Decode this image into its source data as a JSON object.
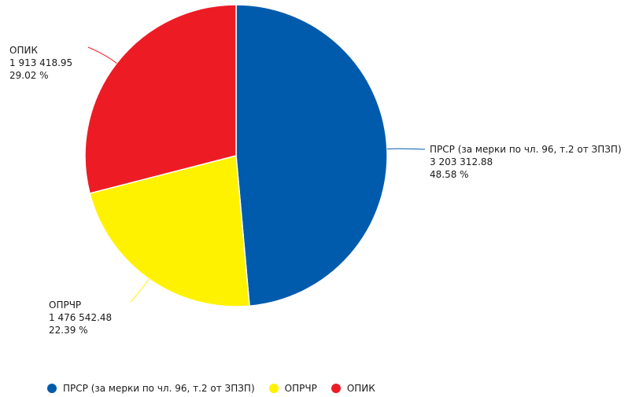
{
  "chart_data": {
    "type": "pie",
    "title": "",
    "legend_position": "bottom",
    "slices": [
      {
        "name": "ПРСР (за мерки по чл. 96, т.2 от ЗПЗП)",
        "value": 3203312.88,
        "value_label": "3 203 312.88",
        "percent_label": "48.58 %",
        "color": "#005BAC"
      },
      {
        "name": "ОПРЧР",
        "value": 1476542.48,
        "value_label": "1 476 542.48",
        "percent_label": "22.39 %",
        "color": "#FFF200"
      },
      {
        "name": "ОПИК",
        "value": 1913418.95,
        "value_label": "1 913 418.95",
        "percent_label": "29.02 %",
        "color": "#ED1C24"
      }
    ]
  }
}
